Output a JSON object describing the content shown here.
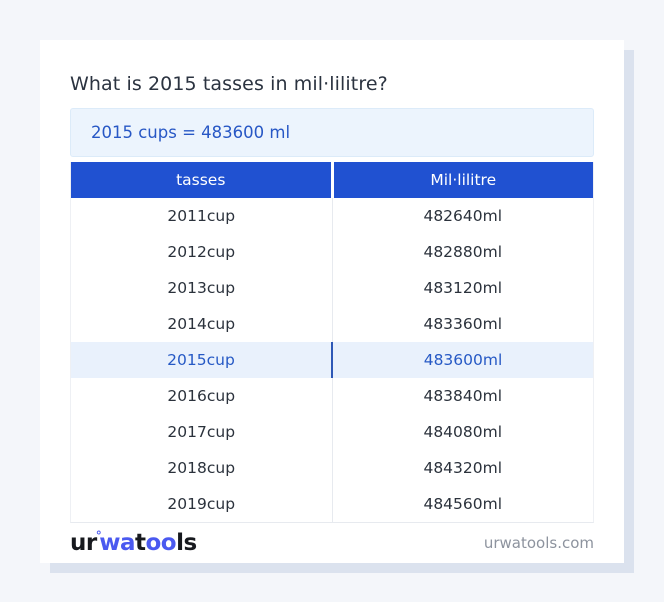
{
  "title": "What is 2015 tasses in mil·lilitre?",
  "result": "2015 cups = 483600 ml",
  "table": {
    "headers": [
      "tasses",
      "Mil·lilitre"
    ],
    "rows": [
      [
        "2011cup",
        "482640ml"
      ],
      [
        "2012cup",
        "482880ml"
      ],
      [
        "2013cup",
        "483120ml"
      ],
      [
        "2014cup",
        "483360ml"
      ],
      [
        "2015cup",
        "483600ml"
      ],
      [
        "2016cup",
        "483840ml"
      ],
      [
        "2017cup",
        "484080ml"
      ],
      [
        "2018cup",
        "484320ml"
      ],
      [
        "2019cup",
        "484560ml"
      ]
    ],
    "highlighted_row_index": 4
  },
  "footer": {
    "logo": {
      "seg1": "ur",
      "degree": "°",
      "seg2": "wa",
      "seg3": "t",
      "seg4": "oo",
      "seg5": "ls"
    },
    "site": "urwatools.com"
  },
  "colors": {
    "page_bg": "#f4f6fa",
    "card_shadow": "#dbe2ee",
    "header_blue": "#2051d1",
    "result_bg": "#ecf4fd",
    "result_text": "#2757c5",
    "highlight_bg": "#e9f1fc",
    "highlight_text": "#2659c5",
    "highlight_divider": "#2e58b6",
    "row_text": "#2b323c",
    "divider_gray": "#e7eaef",
    "muted_gray": "#8d939e",
    "logo_blue": "#4a59f0",
    "logo_dark": "#17191e"
  }
}
